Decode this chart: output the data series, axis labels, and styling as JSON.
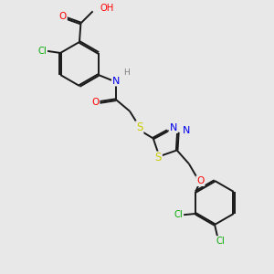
{
  "bg": "#e8e8e8",
  "bond_color": "#1a1a1a",
  "bw": 1.4,
  "dbo": 0.055,
  "fs": 7.2,
  "atom_colors": {
    "O": "#ff0000",
    "N": "#0000ee",
    "S": "#cccc00",
    "Cl": "#00aa00",
    "H": "#808080",
    "C": "#1a1a1a"
  },
  "xlim": [
    0,
    10
  ],
  "ylim": [
    0,
    10
  ]
}
